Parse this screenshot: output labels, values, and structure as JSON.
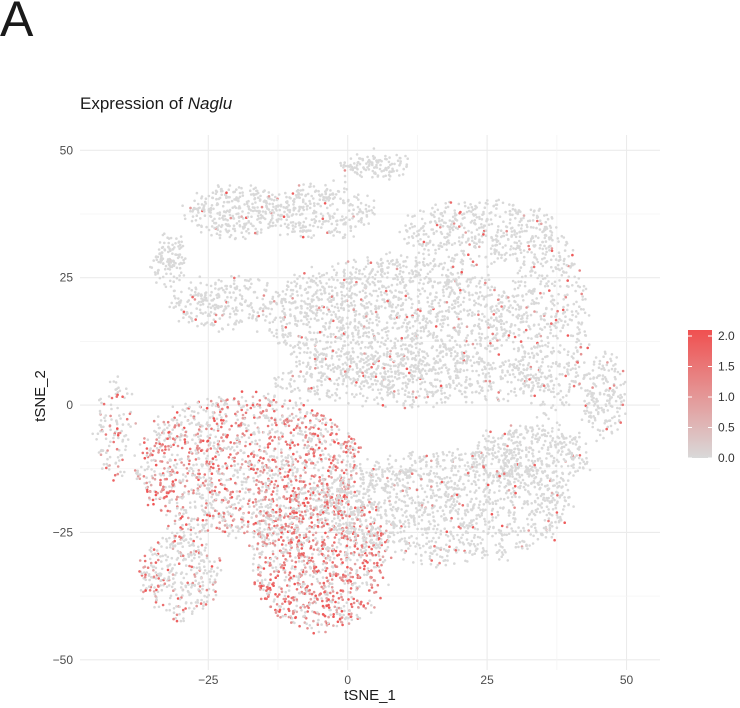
{
  "panel_label": "A",
  "title_prefix": "Expression of ",
  "title_gene": "Naglu",
  "chart_data": {
    "type": "scatter",
    "xlabel": "tSNE_1",
    "ylabel": "tSNE_2",
    "xlim": [
      -48,
      56
    ],
    "ylim": [
      -52,
      53
    ],
    "xticks": [
      -25,
      0,
      25,
      50
    ],
    "yticks": [
      -50,
      -25,
      0,
      25,
      50
    ],
    "xtick_labels": [
      "−25",
      "0",
      "25",
      "50"
    ],
    "ytick_labels": [
      "−50",
      "−25",
      "0",
      "25",
      "50"
    ],
    "grid": true,
    "color_scale": {
      "low": 0.0,
      "high": 2.0,
      "low_color": "#d9d9d9",
      "high_color": "#f05050",
      "ticks": [
        "2.0",
        "1.5",
        "1.0",
        "0.5",
        "0.0"
      ],
      "placement": "right"
    },
    "clusters": [
      {
        "cx": -18,
        "cy": -12,
        "rx": 20,
        "ry": 14,
        "n": 1600,
        "expr": 0.45
      },
      {
        "cx": -5,
        "cy": -30,
        "rx": 12,
        "ry": 14,
        "n": 1100,
        "expr": 0.55
      },
      {
        "cx": -30,
        "cy": -33,
        "rx": 7,
        "ry": 9,
        "n": 350,
        "expr": 0.25
      },
      {
        "cx": 8,
        "cy": 17,
        "rx": 22,
        "ry": 12,
        "n": 1500,
        "expr": 0.05
      },
      {
        "cx": 12,
        "cy": 5,
        "rx": 25,
        "ry": 5,
        "n": 600,
        "expr": 0.05
      },
      {
        "cx": 18,
        "cy": -20,
        "rx": 22,
        "ry": 11,
        "n": 1300,
        "expr": 0.06
      },
      {
        "cx": 33,
        "cy": -10,
        "rx": 10,
        "ry": 6,
        "n": 400,
        "expr": 0.04
      },
      {
        "cx": 36,
        "cy": 16,
        "rx": 7,
        "ry": 18,
        "n": 500,
        "expr": 0.05
      },
      {
        "cx": 24,
        "cy": 34,
        "rx": 14,
        "ry": 6,
        "n": 450,
        "expr": 0.04
      },
      {
        "cx": -20,
        "cy": 38,
        "rx": 9,
        "ry": 5,
        "n": 300,
        "expr": 0.03
      },
      {
        "cx": -5,
        "cy": 38,
        "rx": 10,
        "ry": 5,
        "n": 300,
        "expr": 0.03
      },
      {
        "cx": -32,
        "cy": 28,
        "rx": 3,
        "ry": 5,
        "n": 120,
        "expr": 0.02
      },
      {
        "cx": 5,
        "cy": 47,
        "rx": 6,
        "ry": 2,
        "n": 120,
        "expr": 0.02
      },
      {
        "cx": 46,
        "cy": 2,
        "rx": 4,
        "ry": 8,
        "n": 180,
        "expr": 0.04
      },
      {
        "cx": -22,
        "cy": 20,
        "rx": 10,
        "ry": 5,
        "n": 250,
        "expr": 0.04
      },
      {
        "cx": -42,
        "cy": -5,
        "rx": 3,
        "ry": 10,
        "n": 120,
        "expr": 0.2
      }
    ]
  }
}
